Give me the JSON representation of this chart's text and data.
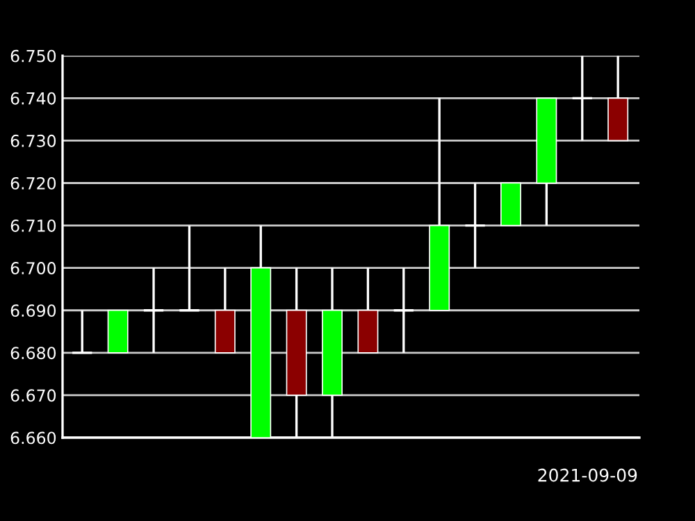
{
  "chart_data": {
    "type": "candlestick",
    "categories": [
      null,
      null,
      null,
      null,
      null,
      null,
      null,
      null,
      null,
      null,
      null,
      null,
      null,
      null,
      null,
      null
    ],
    "ohlc": [
      [
        6.68,
        6.69,
        6.68,
        6.68
      ],
      [
        6.68,
        6.69,
        6.68,
        6.69
      ],
      [
        6.69,
        6.7,
        6.68,
        6.69
      ],
      [
        6.69,
        6.71,
        6.69,
        6.69
      ],
      [
        6.69,
        6.7,
        6.68,
        6.68
      ],
      [
        6.66,
        6.71,
        6.66,
        6.7
      ],
      [
        6.69,
        6.7,
        6.66,
        6.67
      ],
      [
        6.67,
        6.7,
        6.66,
        6.69
      ],
      [
        6.69,
        6.7,
        6.68,
        6.68
      ],
      [
        6.69,
        6.7,
        6.68,
        6.69
      ],
      [
        6.69,
        6.74,
        6.69,
        6.71
      ],
      [
        6.71,
        6.72,
        6.7,
        6.71
      ],
      [
        6.71,
        6.72,
        6.71,
        6.72
      ],
      [
        6.72,
        6.74,
        6.71,
        6.74
      ],
      [
        6.74,
        6.75,
        6.73,
        6.74
      ],
      [
        6.74,
        6.75,
        6.73,
        6.73
      ]
    ],
    "ylim": [
      6.66,
      6.75
    ],
    "yticks": [
      {
        "value": 6.66,
        "label": "6.660"
      },
      {
        "value": 6.67,
        "label": "6.670"
      },
      {
        "value": 6.68,
        "label": "6.680"
      },
      {
        "value": 6.69,
        "label": "6.690"
      },
      {
        "value": 6.7,
        "label": "6.700"
      },
      {
        "value": 6.71,
        "label": "6.710"
      },
      {
        "value": 6.72,
        "label": "6.720"
      },
      {
        "value": 6.73,
        "label": "6.730"
      },
      {
        "value": 6.74,
        "label": "6.740"
      },
      {
        "value": 6.75,
        "label": "6.750"
      }
    ],
    "grid": "y",
    "tick_labels": "y",
    "annotations": [
      "2021-09-09"
    ]
  }
}
